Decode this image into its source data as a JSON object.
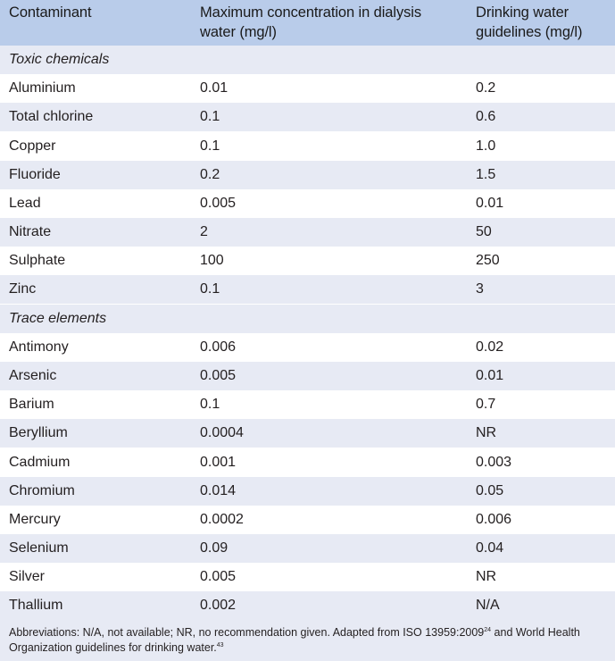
{
  "headers": {
    "contaminant": "Contaminant",
    "dialysis_line1": "Maximum concentration in dialysis",
    "dialysis_line2": "water (mg/l)",
    "drinking_line1": "Drinking water",
    "drinking_line2": "guidelines (mg/l)"
  },
  "sections": [
    {
      "title": "Toxic chemicals",
      "rows": [
        {
          "name": "Aluminium",
          "dialysis": "0.01",
          "drinking": "0.2"
        },
        {
          "name": "Total chlorine",
          "dialysis": "0.1",
          "drinking": "0.6"
        },
        {
          "name": "Copper",
          "dialysis": "0.1",
          "drinking": "1.0"
        },
        {
          "name": "Fluoride",
          "dialysis": "0.2",
          "drinking": "1.5"
        },
        {
          "name": "Lead",
          "dialysis": "0.005",
          "drinking": "0.01"
        },
        {
          "name": "Nitrate",
          "dialysis": "2",
          "drinking": "50"
        },
        {
          "name": "Sulphate",
          "dialysis": "100",
          "drinking": "250"
        },
        {
          "name": "Zinc",
          "dialysis": "0.1",
          "drinking": "3"
        }
      ]
    },
    {
      "title": "Trace elements",
      "rows": [
        {
          "name": "Antimony",
          "dialysis": "0.006",
          "drinking": "0.02"
        },
        {
          "name": "Arsenic",
          "dialysis": "0.005",
          "drinking": "0.01"
        },
        {
          "name": "Barium",
          "dialysis": "0.1",
          "drinking": "0.7"
        },
        {
          "name": "Beryllium",
          "dialysis": "0.0004",
          "drinking": "NR"
        },
        {
          "name": "Cadmium",
          "dialysis": "0.001",
          "drinking": "0.003"
        },
        {
          "name": "Chromium",
          "dialysis": "0.014",
          "drinking": "0.05"
        },
        {
          "name": "Mercury",
          "dialysis": "0.0002",
          "drinking": "0.006"
        },
        {
          "name": "Selenium",
          "dialysis": "0.09",
          "drinking": "0.04"
        },
        {
          "name": "Silver",
          "dialysis": "0.005",
          "drinking": "NR"
        },
        {
          "name": "Thallium",
          "dialysis": "0.002",
          "drinking": "N/A"
        }
      ]
    }
  ],
  "footnote": {
    "part1": "Abbreviations: N/A, not available; NR, no recommendation given. Adapted from ISO 13959:2009",
    "ref1": "24",
    "part2": " and World Health Organization guidelines for drinking water.",
    "ref2": "43"
  }
}
